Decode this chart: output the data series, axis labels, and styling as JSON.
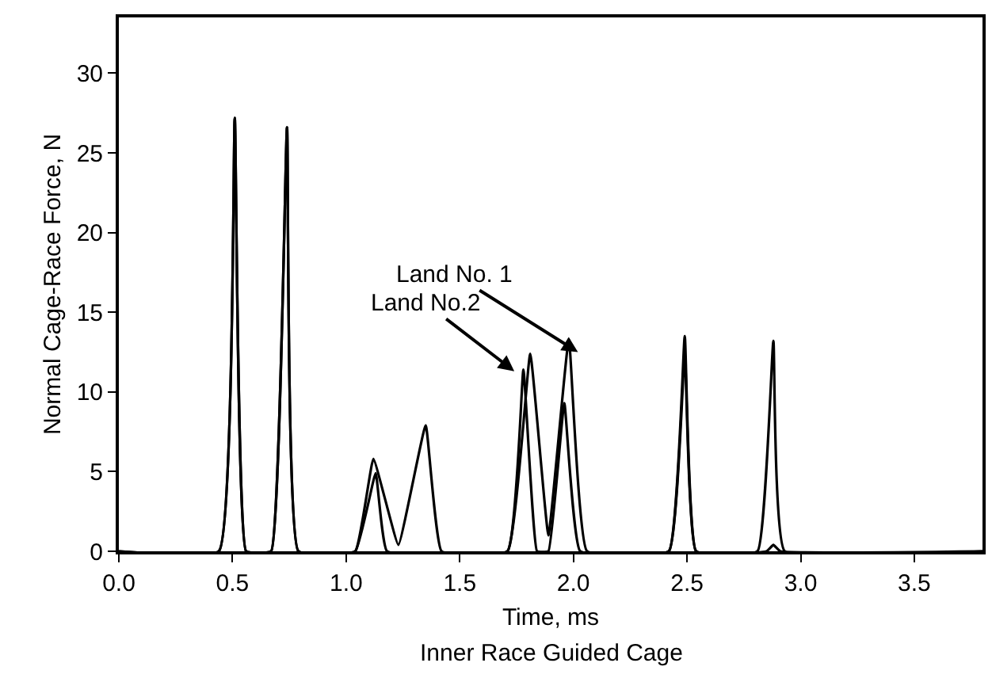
{
  "chart_data": {
    "type": "line",
    "subtitle": "Inner Race Guided Cage",
    "xlabel": "Time, ms",
    "ylabel": "Normal Cage-Race Force, N",
    "xlim": [
      0,
      3.8
    ],
    "ylim": [
      0,
      33.5
    ],
    "xticks": [
      {
        "value": 0,
        "label": "0.0"
      },
      0.5,
      {
        "value": 1,
        "label": "1.0"
      },
      1.5,
      {
        "value": 2,
        "label": "2.0"
      },
      2.5,
      {
        "value": 3,
        "label": "3.0"
      },
      3.5
    ],
    "yticks": [
      0,
      5,
      10,
      15,
      20,
      25,
      30
    ],
    "series": [
      {
        "color": "#000000",
        "x": [
          0,
          0.44,
          0.51,
          0.56,
          0.67,
          0.74,
          0.79,
          1.04,
          1.12,
          1.23,
          1.35,
          1.42,
          1.71,
          1.81,
          1.89,
          1.98,
          2.06,
          2.42,
          2.49,
          2.54,
          2.81,
          2.88,
          2.93,
          3.8
        ],
        "values": [
          0,
          0,
          27.2,
          0,
          0,
          26.6,
          0,
          0,
          5.8,
          0.4,
          7.9,
          0,
          0,
          12.4,
          1.0,
          13.3,
          0,
          0,
          13.5,
          0,
          0,
          13.2,
          0,
          0
        ]
      },
      {
        "color": "#000000",
        "x": [
          0,
          0.44,
          0.51,
          0.56,
          0.67,
          0.74,
          0.79,
          1.04,
          1.13,
          1.18,
          1.71,
          1.78,
          1.84,
          1.89,
          1.96,
          2.03,
          2.42,
          2.49,
          2.54,
          2.85,
          2.88,
          2.91,
          3.8
        ],
        "values": [
          0,
          0,
          27.2,
          0,
          0,
          26.6,
          0,
          0,
          4.9,
          0,
          0,
          11.4,
          0,
          0,
          9.3,
          0,
          0,
          12.4,
          0,
          0,
          0.4,
          0,
          0
        ]
      }
    ],
    "annotations": [
      {
        "text": "Land No. 1",
        "x": 2.02,
        "y": 12.5
      },
      {
        "text": "Land No.2",
        "x": 1.74,
        "y": 11.3
      }
    ],
    "marker": "none",
    "line_style": "solid"
  }
}
